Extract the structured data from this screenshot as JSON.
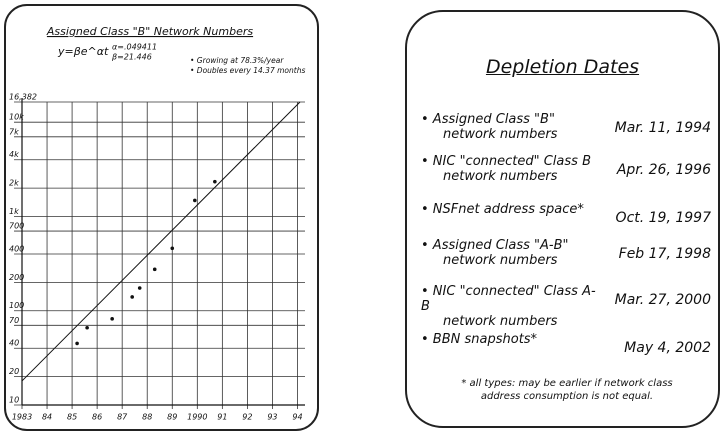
{
  "chart_data": {
    "type": "scatter",
    "title": "Assigned Class \"B\" Network Numbers",
    "formula": "y=βe^αt",
    "alpha": "α=.049411",
    "beta": "β=21.446",
    "notes": [
      "• Growing at 78.3%/year",
      "• Doubles every 14.37 months"
    ],
    "log_y": true,
    "grid": true,
    "color": "#111111",
    "x": [
      1985.2,
      1985.6,
      1986.6,
      1987.4,
      1987.7,
      1988.3,
      1989.0,
      1989.9,
      1990.7
    ],
    "values": [
      45,
      66,
      82,
      140,
      174,
      275,
      460,
      1480,
      2340
    ],
    "fit": {
      "x": [
        1983,
        1994.1
      ],
      "values": [
        18,
        16382
      ]
    },
    "xlim": [
      1983,
      1994.3
    ],
    "ylim": [
      10,
      16382
    ],
    "xticks": [
      1983,
      {
        "value": 1984,
        "label": "84"
      },
      {
        "value": 1985,
        "label": "85"
      },
      {
        "value": 1986,
        "label": "86"
      },
      {
        "value": 1987,
        "label": "87"
      },
      {
        "value": 1988,
        "label": "88"
      },
      {
        "value": 1989,
        "label": "89"
      },
      1990,
      {
        "value": 1991,
        "label": "91"
      },
      {
        "value": 1992,
        "label": "92"
      },
      {
        "value": 1993,
        "label": "93"
      },
      {
        "value": 1994,
        "label": "94"
      }
    ],
    "yticks": [
      10,
      20,
      40,
      70,
      100,
      200,
      400,
      700,
      {
        "value": 1000,
        "label": "1k"
      },
      {
        "value": 2000,
        "label": "2k"
      },
      {
        "value": 4000,
        "label": "4k"
      },
      {
        "value": 7000,
        "label": "7k"
      },
      {
        "value": 10000,
        "label": "10k"
      },
      {
        "value": 16382,
        "label": "16,382"
      }
    ]
  },
  "depletion": {
    "title": "Depletion Dates",
    "items": [
      {
        "label": [
          "Assigned Class \"B\"",
          "network numbers"
        ],
        "date": "Mar. 11, 1994"
      },
      {
        "label": [
          "NIC \"connected\" Class B",
          "network numbers"
        ],
        "date": "Apr. 26, 1996"
      },
      {
        "label": [
          "NSFnet address space*"
        ],
        "date": "Oct. 19, 1997"
      },
      {
        "label": [
          "Assigned Class \"A-B\"",
          "network numbers"
        ],
        "date": "Feb 17, 1998"
      },
      {
        "label": [
          "NIC \"connected\" Class A-B",
          "network numbers"
        ],
        "date": "Mar. 27, 2000"
      },
      {
        "label": [
          "BBN snapshots*"
        ],
        "date": "May 4, 2002"
      }
    ],
    "footnote": "* all types: may be earlier if network class address consumption is not equal."
  }
}
